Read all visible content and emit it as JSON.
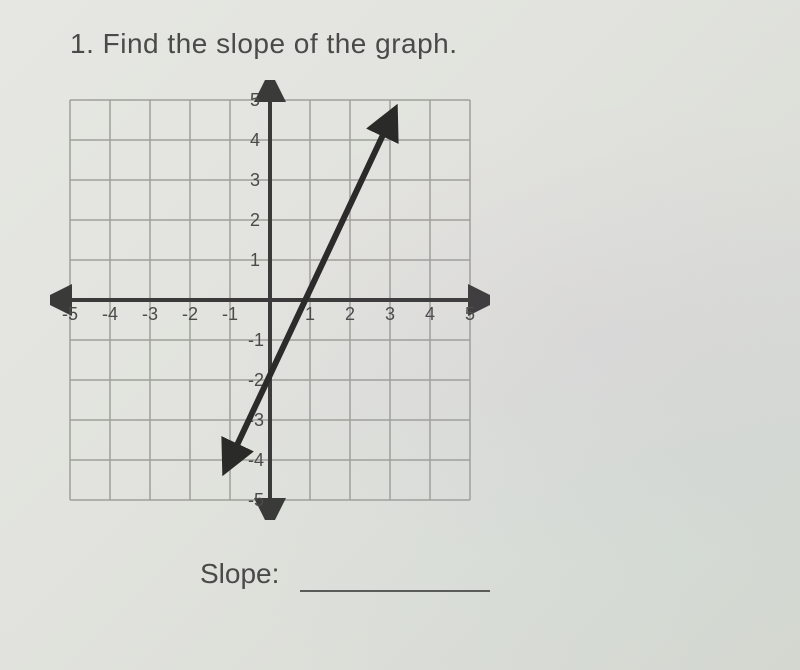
{
  "question": {
    "number": "1.",
    "text": "Find the slope of the graph."
  },
  "answer": {
    "label": "Slope:"
  },
  "chart": {
    "type": "line-graph-on-grid",
    "xlim": [
      -5,
      5
    ],
    "ylim": [
      -5,
      5
    ],
    "xtick_step": 1,
    "ytick_step": 1,
    "xtick_labels_neg": [
      "-5",
      "-4",
      "-3",
      "-2",
      "-1"
    ],
    "xtick_labels_pos": [
      "1",
      "2",
      "3",
      "4",
      "5"
    ],
    "ytick_labels_neg": [
      "-1",
      "-2",
      "-3",
      "-4",
      "-5"
    ],
    "ytick_labels_pos": [
      "1",
      "2",
      "3",
      "4",
      "5"
    ],
    "grid_color": "#9fa09a",
    "grid_width": 1.5,
    "axis_color": "#3a3a38",
    "axis_width": 4,
    "background_color": "transparent",
    "label_fontsize": 18,
    "label_color": "#4a4a48",
    "line": {
      "x1": -1,
      "y1": -4,
      "x2": 3,
      "y2": 4.5,
      "stroke": "#2a2a28",
      "width": 6,
      "arrow_both": true,
      "arrow_size": 12
    }
  }
}
